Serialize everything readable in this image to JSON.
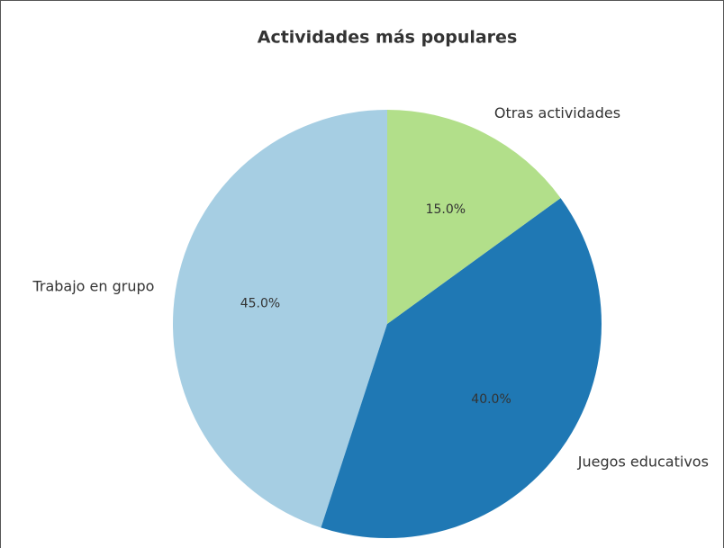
{
  "chart_data": {
    "type": "pie",
    "title": "Actividades más populares",
    "categories": [
      "Trabajo en grupo",
      "Juegos educativos",
      "Otras actividades"
    ],
    "values": [
      45,
      40,
      15
    ],
    "value_labels": [
      "45.0%",
      "40.0%",
      "15.0%"
    ],
    "colors": [
      "#a6cee3",
      "#1f78b4",
      "#b2df8a"
    ]
  }
}
